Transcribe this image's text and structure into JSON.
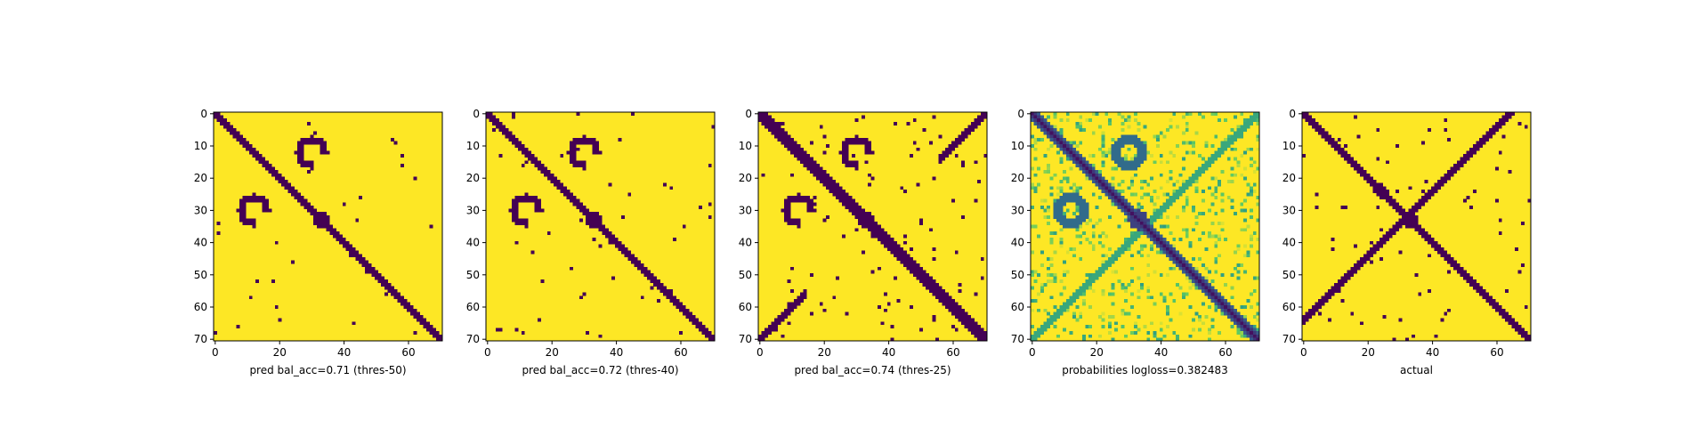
{
  "chart_data": [
    {
      "type": "heatmap",
      "xlabel": "pred bal_acc=0.71 (thres-50)",
      "xticks": [
        0,
        20,
        40,
        60
      ],
      "yticks": [
        0,
        10,
        20,
        30,
        40,
        50,
        60,
        70
      ],
      "xlim": [
        0,
        70
      ],
      "ylim": [
        70,
        0
      ],
      "colormap": "viridis-binary",
      "colors": {
        "contact": "#440154",
        "background": "#fde725"
      }
    },
    {
      "type": "heatmap",
      "xlabel": "pred bal_acc=0.72 (thres-40)",
      "xticks": [
        0,
        20,
        40,
        60
      ],
      "yticks": [
        0,
        10,
        20,
        30,
        40,
        50,
        60,
        70
      ],
      "xlim": [
        0,
        70
      ],
      "ylim": [
        70,
        0
      ],
      "colormap": "viridis-binary",
      "colors": {
        "contact": "#440154",
        "background": "#fde725"
      }
    },
    {
      "type": "heatmap",
      "xlabel": "pred bal_acc=0.74 (thres-25)",
      "xticks": [
        0,
        20,
        40,
        60
      ],
      "yticks": [
        0,
        10,
        20,
        30,
        40,
        50,
        60,
        70
      ],
      "xlim": [
        0,
        70
      ],
      "ylim": [
        70,
        0
      ],
      "colormap": "viridis-binary",
      "colors": {
        "contact": "#440154",
        "background": "#fde725"
      }
    },
    {
      "type": "heatmap",
      "xlabel": "probabilities logloss=0.382483",
      "xticks": [
        0,
        20,
        40,
        60
      ],
      "yticks": [
        0,
        10,
        20,
        30,
        40,
        50,
        60,
        70
      ],
      "xlim": [
        0,
        70
      ],
      "ylim": [
        70,
        0
      ],
      "colormap": "viridis-continuous",
      "colors": {
        "contact": "#440154",
        "background": "#fde725"
      }
    },
    {
      "type": "heatmap",
      "xlabel": "actual",
      "xticks": [
        0,
        20,
        40,
        60
      ],
      "yticks": [
        0,
        10,
        20,
        30,
        40,
        50,
        60,
        70
      ],
      "xlim": [
        0,
        70
      ],
      "ylim": [
        70,
        0
      ],
      "colormap": "viridis-binary",
      "colors": {
        "contact": "#440154",
        "background": "#fde725"
      }
    }
  ]
}
